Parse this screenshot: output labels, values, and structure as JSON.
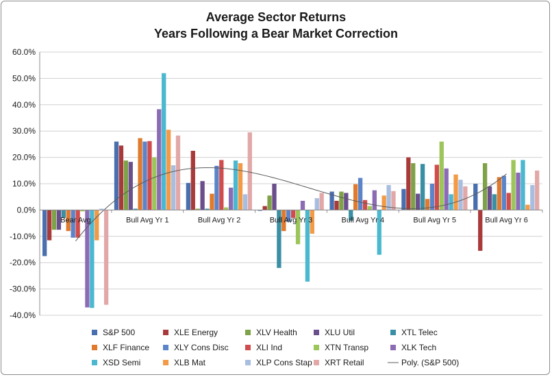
{
  "chart_data": {
    "type": "bar",
    "title": "Average Sector Returns",
    "subtitle": "Years Following a Bear Market Correction",
    "xlabel": "",
    "ylabel": "",
    "ylim": [
      -0.4,
      0.6
    ],
    "y_ticks": [
      "60.0%",
      "50.0%",
      "40.0%",
      "30.0%",
      "20.0%",
      "10.0%",
      "0.0%",
      "-10.0%",
      "-20.0%",
      "-30.0%",
      "-40.0%"
    ],
    "grid": true,
    "legend_position": "bottom",
    "categories": [
      "Bear Avg",
      "Bull Avg Yr 1",
      "Bull Avg Yr 2",
      "Bull Avg Yr 3",
      "Bull Avg Yr 4",
      "Bull Avg Yr 5",
      "Bull Avg Yr 6"
    ],
    "series": [
      {
        "name": "S&P 500",
        "color": "#4A6FAE",
        "values": [
          -0.175,
          0.26,
          0.103,
          -0.003,
          0.07,
          0.08,
          0.1
        ]
      },
      {
        "name": "XLE Energy",
        "color": "#A93A3A",
        "values": [
          -0.115,
          0.245,
          0.225,
          0.015,
          0.035,
          0.2,
          -0.155
        ]
      },
      {
        "name": "XLV Health",
        "color": "#7EA247",
        "values": [
          -0.075,
          0.188,
          0.005,
          0.055,
          0.07,
          0.178,
          0.178
        ]
      },
      {
        "name": "XLU Util",
        "color": "#6B4F8C",
        "values": [
          -0.075,
          0.183,
          0.11,
          0.1,
          0.065,
          0.062,
          0.09
        ]
      },
      {
        "name": "XTL Telec",
        "color": "#3A8FA5",
        "values": [
          -0.03,
          0.005,
          0.005,
          -0.22,
          -0.04,
          0.175,
          0.06
        ]
      },
      {
        "name": "XLF Finance",
        "color": "#E07A2E",
        "values": [
          -0.08,
          0.273,
          0.062,
          -0.08,
          0.098,
          0.042,
          0.125
        ]
      },
      {
        "name": "XLY Cons Disc",
        "color": "#5B84C9",
        "values": [
          -0.105,
          0.26,
          0.168,
          -0.045,
          0.122,
          0.1,
          0.13
        ]
      },
      {
        "name": "XLI Ind",
        "color": "#D14C4C",
        "values": [
          -0.105,
          0.262,
          0.19,
          -0.03,
          0.038,
          0.172,
          0.065
        ]
      },
      {
        "name": "XTN Transp",
        "color": "#9CC55A",
        "values": [
          -0.005,
          0.2,
          0.01,
          -0.13,
          0.015,
          0.26,
          0.19
        ]
      },
      {
        "name": "XLK Tech",
        "color": "#8C6BB5",
        "values": [
          -0.37,
          0.383,
          0.085,
          0.035,
          0.075,
          0.158,
          0.142
        ]
      },
      {
        "name": "XSD Semi",
        "color": "#4BB8D0",
        "values": [
          -0.372,
          0.52,
          0.188,
          -0.272,
          -0.17,
          0.06,
          0.19
        ]
      },
      {
        "name": "XLB Mat",
        "color": "#F39A47",
        "values": [
          -0.115,
          0.305,
          0.178,
          -0.09,
          0.055,
          0.135,
          0.02
        ]
      },
      {
        "name": "XLP Cons Stap",
        "color": "#A8BEE0",
        "values": [
          0.005,
          0.17,
          0.06,
          0.045,
          0.095,
          0.115,
          0.095
        ]
      },
      {
        "name": "XRT Retail",
        "color": "#E2A8A8",
        "values": [
          -0.36,
          0.283,
          0.295,
          0.065,
          0.072,
          0.09,
          0.15
        ]
      }
    ],
    "trendline": {
      "name": "Poly. (S&P 500)",
      "color": "#595959",
      "type": "polynomial"
    }
  }
}
